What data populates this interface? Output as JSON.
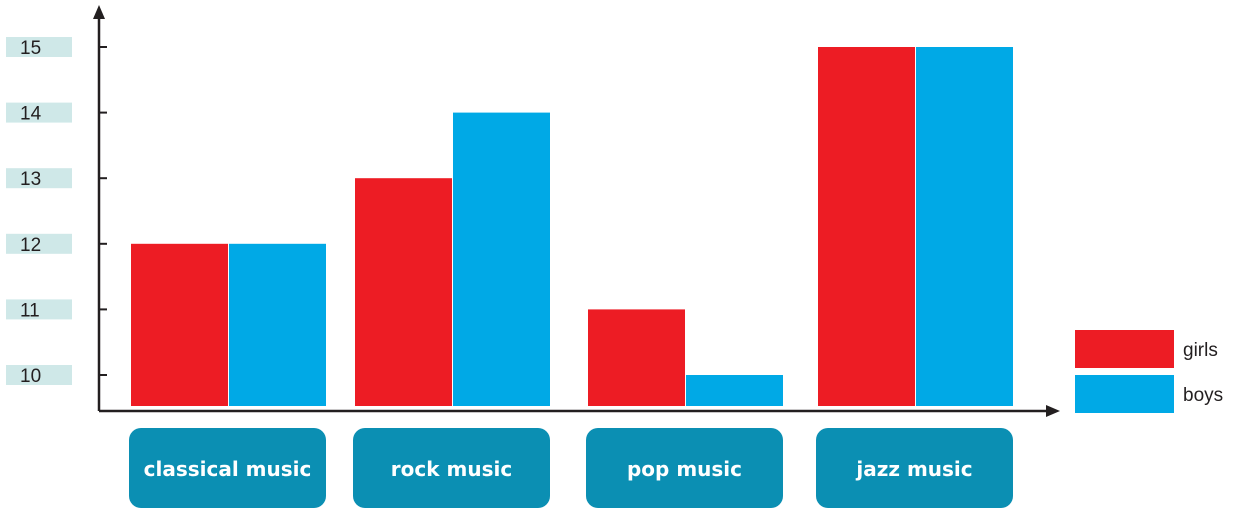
{
  "chart_data": {
    "type": "bar",
    "categories": [
      "classical music",
      "rock music",
      "pop music",
      "jazz music"
    ],
    "series": [
      {
        "name": "girls",
        "values": [
          12,
          13,
          11,
          15
        ],
        "color": "#ed1c24"
      },
      {
        "name": "boys",
        "values": [
          12,
          14,
          10,
          15
        ],
        "color": "#00a9e6"
      }
    ],
    "yticks": [
      10,
      11,
      12,
      13,
      14,
      15
    ],
    "ylim": [
      9.5,
      15
    ],
    "grid": false,
    "legend_position": "bottom-right",
    "tick_label_background": "#cfe8e8",
    "category_label_background": "#0b8fb3"
  }
}
